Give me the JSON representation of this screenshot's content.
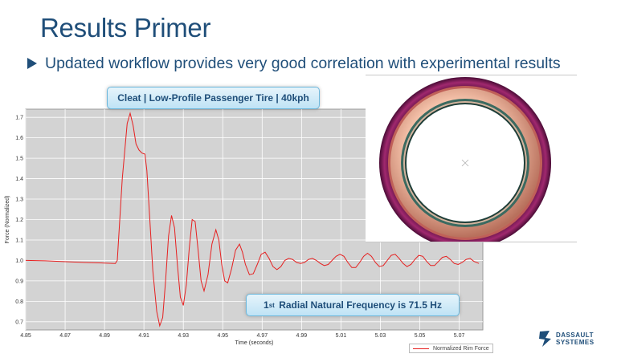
{
  "slide": {
    "title": "Results Primer",
    "bullet": "Updated workflow provides very good correlation with experimental results"
  },
  "callouts": {
    "scenario": "Cleat | Low-Profile Passenger Tire | 40kph",
    "frequency_prefix": "1",
    "frequency_sup": "st",
    "frequency_text": "Radial Natural Frequency is 71.5 Hz"
  },
  "chart_data": {
    "type": "line",
    "title": "",
    "xlabel": "Time (seconds)",
    "ylabel": "Force (Normalized)",
    "xlim": [
      4.85,
      5.082
    ],
    "ylim": [
      0.66,
      1.74
    ],
    "x_ticks": [
      "4.85",
      "4.87",
      "4.89",
      "4.91",
      "4.93",
      "4.95",
      "4.97",
      "4.99",
      "5.01",
      "5.03",
      "5.05",
      "5.07"
    ],
    "y_ticks": [
      "0.7",
      "0.8",
      "0.9",
      "1.0",
      "1.1",
      "1.2",
      "1.3",
      "1.4",
      "1.5",
      "1.6",
      "1.7"
    ],
    "grid": true,
    "legend_position": "bottom-right",
    "series": [
      {
        "name": "Normalized Rim Force",
        "color": "#e62020",
        "x": [
          4.85,
          4.86,
          4.87,
          4.88,
          4.89,
          4.8955,
          4.8965,
          4.899,
          4.9015,
          4.903,
          4.9045,
          4.906,
          4.9075,
          4.909,
          4.9105,
          4.9115,
          4.913,
          4.9145,
          4.9165,
          4.918,
          4.9195,
          4.921,
          4.9225,
          4.924,
          4.9255,
          4.927,
          4.9285,
          4.93,
          4.9315,
          4.933,
          4.9345,
          4.936,
          4.9375,
          4.939,
          4.9405,
          4.9425,
          4.9445,
          4.9465,
          4.948,
          4.9495,
          4.951,
          4.9525,
          4.9545,
          4.9565,
          4.9585,
          4.96,
          4.9615,
          4.9635,
          4.9655,
          4.9675,
          4.9695,
          4.9715,
          4.9735,
          4.9755,
          4.9775,
          4.9795,
          4.9815,
          4.9835,
          4.9855,
          4.9875,
          4.9895,
          4.9915,
          4.9935,
          4.9955,
          4.9975,
          4.9995,
          5.0015,
          5.0035,
          5.0055,
          5.0075,
          5.0095,
          5.0115,
          5.0135,
          5.0155,
          5.0175,
          5.0195,
          5.0215,
          5.0235,
          5.0255,
          5.0275,
          5.0295,
          5.0315,
          5.0335,
          5.0355,
          5.0375,
          5.0395,
          5.0415,
          5.0435,
          5.0455,
          5.0475,
          5.0495,
          5.0515,
          5.0535,
          5.0555,
          5.0575,
          5.0595,
          5.0615,
          5.0635,
          5.0655,
          5.0675,
          5.0695,
          5.0715,
          5.0735,
          5.0755,
          5.0775,
          5.08
        ],
        "values": [
          1.0,
          0.998,
          0.994,
          0.99,
          0.987,
          0.985,
          1.0,
          1.4,
          1.67,
          1.72,
          1.66,
          1.57,
          1.54,
          1.525,
          1.52,
          1.44,
          1.2,
          0.95,
          0.75,
          0.68,
          0.72,
          0.9,
          1.12,
          1.22,
          1.16,
          0.98,
          0.82,
          0.78,
          0.88,
          1.06,
          1.2,
          1.19,
          1.05,
          0.9,
          0.85,
          0.93,
          1.08,
          1.15,
          1.1,
          0.98,
          0.9,
          0.89,
          0.96,
          1.05,
          1.08,
          1.04,
          0.98,
          0.93,
          0.935,
          0.98,
          1.03,
          1.04,
          1.01,
          0.97,
          0.955,
          0.97,
          1.0,
          1.01,
          1.005,
          0.99,
          0.985,
          0.99,
          1.005,
          1.01,
          1.0,
          0.985,
          0.975,
          0.98,
          1.0,
          1.02,
          1.03,
          1.02,
          0.99,
          0.965,
          0.965,
          0.99,
          1.02,
          1.035,
          1.02,
          0.99,
          0.97,
          0.975,
          1.0,
          1.025,
          1.03,
          1.01,
          0.985,
          0.97,
          0.98,
          1.005,
          1.025,
          1.02,
          0.995,
          0.975,
          0.975,
          0.995,
          1.015,
          1.02,
          1.005,
          0.985,
          0.98,
          0.99,
          1.005,
          1.01,
          0.995,
          0.985
        ]
      }
    ]
  },
  "logo": {
    "line1": "DASSAULT",
    "line2": "SYSTEMES"
  },
  "colors": {
    "title": "#1f4e79",
    "plot_bg": "#d3d3d3",
    "curve": "#e62020",
    "tire_outer": "#6e1650",
    "tire_mid": "#d8927c",
    "tire_inner": "#2f5e55"
  }
}
